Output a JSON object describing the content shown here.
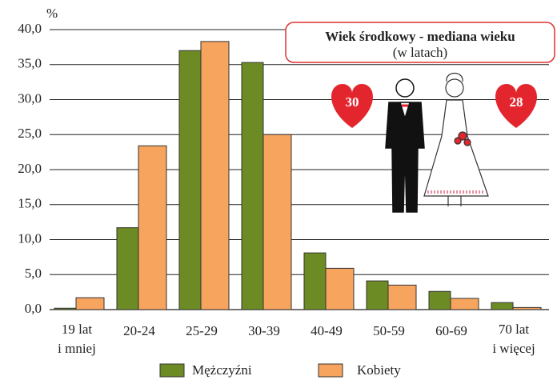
{
  "chart_data": {
    "type": "bar",
    "y_unit": "%",
    "categories": [
      "19 lat\ni mniej",
      "20-24",
      "25-29",
      "30-39",
      "40-49",
      "50-59",
      "60-69",
      "70 lat\ni więcej"
    ],
    "series": [
      {
        "name": "Mężczyźni",
        "color": "#6d8b24",
        "values": [
          0.2,
          11.7,
          37.0,
          35.3,
          8.1,
          4.1,
          2.6,
          1.0
        ]
      },
      {
        "name": "Kobiety",
        "color": "#f7a45e",
        "values": [
          1.7,
          23.4,
          38.3,
          25.0,
          5.9,
          3.5,
          1.6,
          0.3
        ]
      }
    ],
    "ylim": [
      0,
      40
    ],
    "yticks": [
      {
        "value": 0,
        "label": "0,0"
      },
      {
        "value": 5,
        "label": "5,0"
      },
      {
        "value": 10,
        "label": "10,0"
      },
      {
        "value": 15,
        "label": "15,0"
      },
      {
        "value": 20,
        "label": "20,0"
      },
      {
        "value": 25,
        "label": "25,0"
      },
      {
        "value": 30,
        "label": "30,0"
      },
      {
        "value": 35,
        "label": "35,0"
      },
      {
        "value": 40,
        "label": "40,0"
      }
    ],
    "grid": true,
    "annotation": {
      "title": "Wiek środkowy - mediana wieku",
      "subtitle": "(w latach)",
      "men_median": 30,
      "women_median": 28
    }
  }
}
